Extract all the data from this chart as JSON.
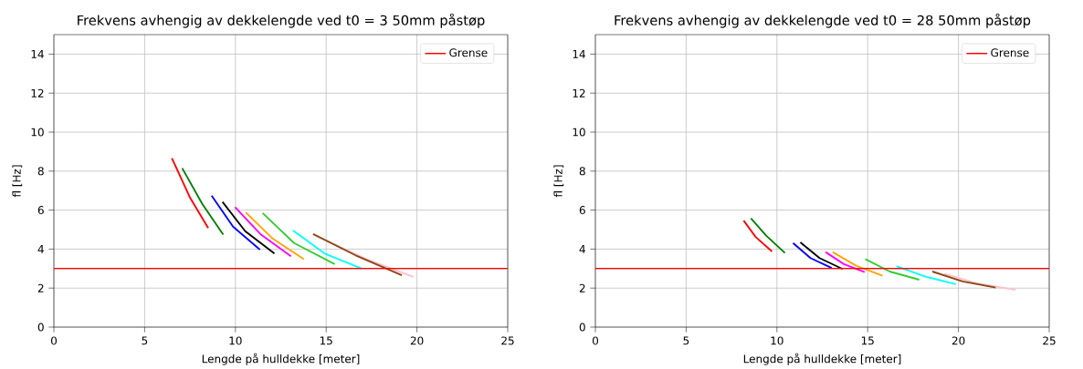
{
  "chart_data": [
    {
      "type": "line",
      "title": "Frekvens avhengig av dekkelengde ved t0 = 3 50mm påstøp",
      "xlabel": "Lengde på hulldekke [meter]",
      "ylabel": "fl [Hz]",
      "xlim": [
        0,
        25
      ],
      "ylim": [
        0,
        15
      ],
      "xticks": [
        0,
        5,
        10,
        15,
        20,
        25
      ],
      "yticks": [
        0,
        2,
        4,
        6,
        8,
        10,
        12,
        14
      ],
      "grid": true,
      "legend": "top right",
      "marker": "none",
      "line_style": "solid",
      "ref_lines": [
        {
          "axis": "y",
          "value": 3,
          "label": "Grense",
          "color": "#ff0000"
        }
      ],
      "series": [
        {
          "color": "#ff0000",
          "x": [
            6.5,
            7.51,
            8.5
          ],
          "values": [
            8.66,
            6.62,
            5.08
          ]
        },
        {
          "color": "#008000",
          "x": [
            7.07,
            8.18,
            9.33
          ],
          "values": [
            8.15,
            6.31,
            4.74
          ]
        },
        {
          "color": "#0000ff",
          "x": [
            8.69,
            9.87,
            11.35
          ],
          "values": [
            6.74,
            5.15,
            3.97
          ]
        },
        {
          "color": "#000000",
          "x": [
            9.29,
            10.54,
            12.15
          ],
          "values": [
            6.42,
            4.92,
            3.77
          ]
        },
        {
          "color": "#ff00ff",
          "x": [
            9.98,
            11.38,
            13.06
          ],
          "values": [
            6.15,
            4.77,
            3.63
          ]
        },
        {
          "color": "#ffa500",
          "x": [
            10.57,
            12.05,
            13.77
          ],
          "values": [
            5.88,
            4.54,
            3.48
          ]
        },
        {
          "color": "#32cd32",
          "x": [
            11.5,
            13.23,
            15.47
          ],
          "values": [
            5.85,
            4.31,
            3.23
          ]
        },
        {
          "color": "#00ffff",
          "x": [
            13.18,
            14.92,
            16.97
          ],
          "values": [
            4.95,
            3.77,
            3.0
          ]
        },
        {
          "color": "#ffc0cb",
          "x": [
            15.0,
            17.27,
            19.8
          ],
          "values": [
            4.43,
            3.46,
            2.58
          ]
        },
        {
          "color": "#8b4513",
          "x": [
            14.28,
            16.6,
            19.17
          ],
          "values": [
            4.77,
            3.69,
            2.66
          ]
        }
      ]
    },
    {
      "type": "line",
      "title": "Frekvens avhengig av dekkelengde ved t0 = 28 50mm påstøp",
      "xlabel": "Lengde på hulldekke [meter]",
      "ylabel": "fl [Hz]",
      "xlim": [
        0,
        25
      ],
      "ylim": [
        0,
        15
      ],
      "xticks": [
        0,
        5,
        10,
        15,
        20,
        25
      ],
      "yticks": [
        0,
        2,
        4,
        6,
        8,
        10,
        12,
        14
      ],
      "grid": true,
      "legend": "top right",
      "marker": "none",
      "line_style": "solid",
      "ref_lines": [
        {
          "axis": "y",
          "value": 3,
          "label": "Grense",
          "color": "#ff0000"
        }
      ],
      "series": [
        {
          "color": "#ff0000",
          "x": [
            8.17,
            8.83,
            9.73
          ],
          "values": [
            5.46,
            4.62,
            3.88
          ]
        },
        {
          "color": "#008000",
          "x": [
            8.57,
            9.41,
            10.44
          ],
          "values": [
            5.58,
            4.69,
            3.8
          ]
        },
        {
          "color": "#0000ff",
          "x": [
            10.89,
            11.85,
            13.02
          ],
          "values": [
            4.31,
            3.54,
            3.03
          ]
        },
        {
          "color": "#000000",
          "x": [
            11.29,
            12.35,
            13.62
          ],
          "values": [
            4.35,
            3.54,
            2.98
          ]
        },
        {
          "color": "#ff00ff",
          "x": [
            12.68,
            13.69,
            14.83
          ],
          "values": [
            3.85,
            3.23,
            2.82
          ]
        },
        {
          "color": "#ffa500",
          "x": [
            13.07,
            14.36,
            15.82
          ],
          "values": [
            3.85,
            3.15,
            2.63
          ]
        },
        {
          "color": "#32cd32",
          "x": [
            14.87,
            16.21,
            17.84
          ],
          "values": [
            3.49,
            2.85,
            2.43
          ]
        },
        {
          "color": "#00ffff",
          "x": [
            16.58,
            18.22,
            19.85
          ],
          "values": [
            3.12,
            2.58,
            2.2
          ]
        },
        {
          "color": "#ffc0cb",
          "x": [
            19.23,
            21.07,
            23.14
          ],
          "values": [
            2.74,
            2.23,
            1.91
          ]
        },
        {
          "color": "#8b4513",
          "x": [
            18.56,
            20.23,
            22.05
          ],
          "values": [
            2.85,
            2.34,
            2.03
          ]
        }
      ]
    }
  ]
}
